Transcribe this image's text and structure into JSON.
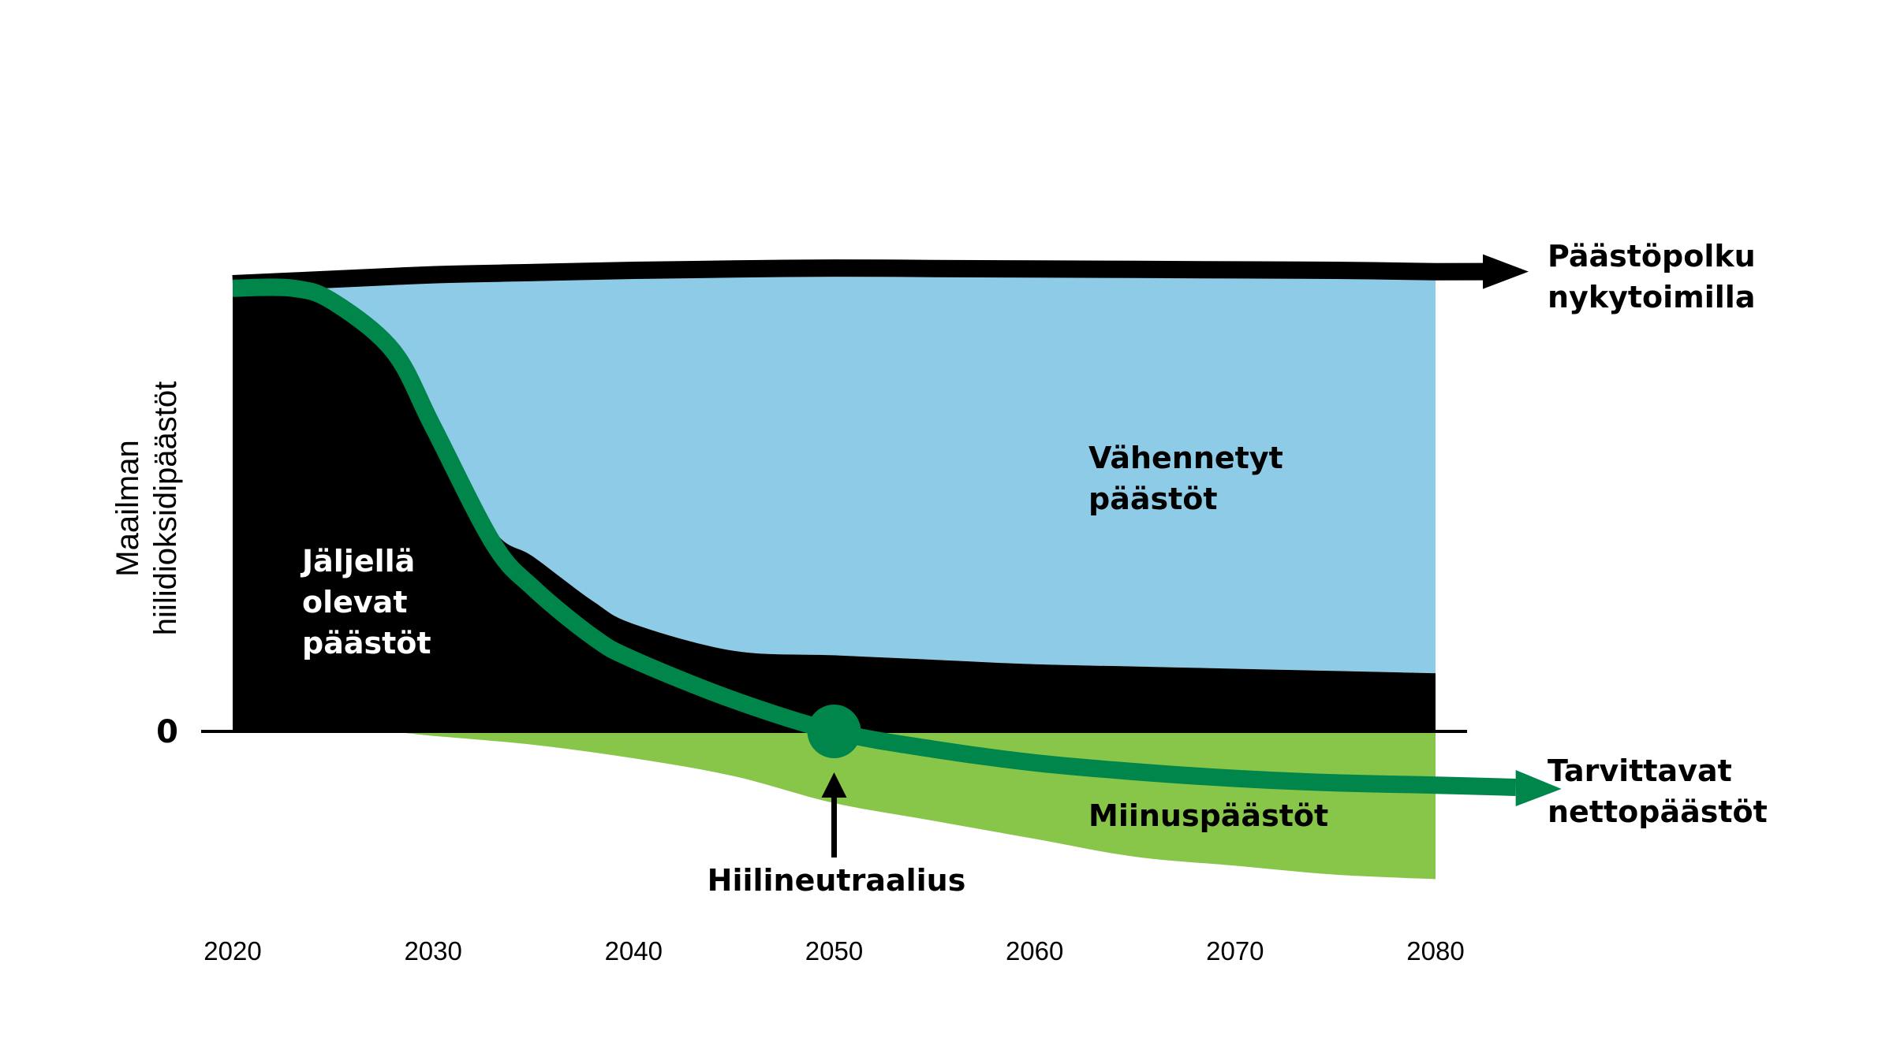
{
  "chart_data": {
    "type": "area",
    "ylabel": [
      "Maailman",
      "hiilidioksidipäästöt"
    ],
    "zero_label": "0",
    "x_ticks": [
      2020,
      2030,
      2040,
      2050,
      2060,
      2070,
      2080
    ],
    "xlim": [
      2020,
      2080
    ],
    "ylim": [
      -0.35,
      1.05
    ],
    "grid": false,
    "series": [
      {
        "name": "Päästöpolku nykytoimilla",
        "x": [
          2020,
          2025,
          2030,
          2035,
          2040,
          2045,
          2050,
          2055,
          2060,
          2065,
          2070,
          2075,
          2080
        ],
        "values": [
          1.0,
          1.01,
          1.02,
          1.025,
          1.03,
          1.033,
          1.035,
          1.034,
          1.033,
          1.032,
          1.031,
          1.03,
          1.027
        ]
      },
      {
        "name": "Jäljellä olevat päästöt",
        "x": [
          2020,
          2023,
          2025,
          2028,
          2030,
          2033,
          2035,
          2038,
          2040,
          2045,
          2050,
          2055,
          2060,
          2065,
          2070,
          2075,
          2080
        ],
        "values": [
          0.99,
          0.99,
          0.96,
          0.85,
          0.68,
          0.45,
          0.39,
          0.29,
          0.24,
          0.18,
          0.17,
          0.16,
          0.15,
          0.145,
          0.14,
          0.135,
          0.13
        ]
      },
      {
        "name": "Miinuspäästöt",
        "x": [
          2020,
          2027,
          2030,
          2035,
          2040,
          2045,
          2050,
          2055,
          2060,
          2065,
          2070,
          2075,
          2080
        ],
        "values": [
          0,
          0,
          -0.01,
          -0.03,
          -0.06,
          -0.1,
          -0.16,
          -0.2,
          -0.24,
          -0.28,
          -0.3,
          -0.32,
          -0.33
        ]
      },
      {
        "name": "Tarvittavat nettopäästöt",
        "x": [
          2020,
          2023,
          2025,
          2028,
          2030,
          2033,
          2035,
          2038,
          2040,
          2045,
          2050,
          2055,
          2060,
          2065,
          2070,
          2075,
          2080,
          2084
        ],
        "values": [
          0.99,
          0.99,
          0.96,
          0.85,
          0.68,
          0.42,
          0.32,
          0.21,
          0.16,
          0.07,
          0.0,
          -0.04,
          -0.07,
          -0.09,
          -0.105,
          -0.115,
          -0.12,
          -0.125
        ]
      }
    ],
    "annotations": {
      "remaining": [
        "Jäljellä",
        "olevat",
        "päästöt"
      ],
      "reduced": [
        "Vähennetyt",
        "päästöt"
      ],
      "negative": "Miinuspäästöt",
      "current_path": [
        "Päästöpolku",
        "nykytoimilla"
      ],
      "net_required": [
        "Tarvittavat",
        "nettopäästöt"
      ],
      "neutrality": "Hiilineutraalius",
      "neutrality_year": 2050
    },
    "colors": {
      "remaining": "#000000",
      "reduced": "#8ecbe7",
      "negative": "#88c64a",
      "net_line": "#00864a",
      "current_line": "#000000"
    }
  }
}
